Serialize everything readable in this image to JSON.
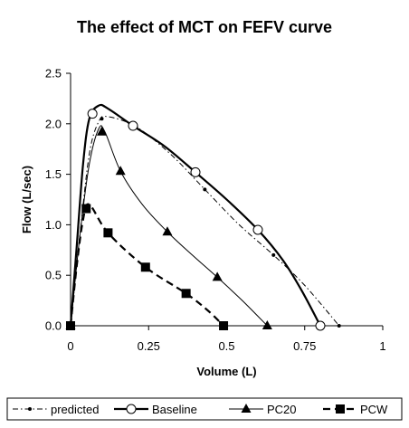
{
  "chart_data": {
    "type": "line",
    "title": "The effect of MCT on FEFV curve",
    "xlabel": "Volume (L)",
    "ylabel": "Flow (L/sec)",
    "xlim": [
      0,
      1
    ],
    "ylim": [
      0,
      2.5
    ],
    "x_ticks": [
      "0",
      "0.25",
      "0.5",
      "0.75",
      "1"
    ],
    "y_ticks": [
      "0.0",
      "0.5",
      "1.0",
      "1.5",
      "2.0",
      "2.5"
    ],
    "grid": false,
    "legend_position": "bottom",
    "series": [
      {
        "name": "predicted",
        "marker": "dot",
        "line": "dash-dot",
        "points": [
          [
            0,
            0
          ],
          [
            0.1,
            2.05
          ],
          [
            0.21,
            1.97
          ],
          [
            0.43,
            1.35
          ],
          [
            0.65,
            0.7
          ],
          [
            0.86,
            0
          ]
        ],
        "curve": [
          [
            0,
            0
          ],
          [
            0.03,
            0.9
          ],
          [
            0.06,
            1.7
          ],
          [
            0.09,
            2.02
          ],
          [
            0.12,
            2.07
          ],
          [
            0.21,
            1.97
          ],
          [
            0.32,
            1.7
          ],
          [
            0.43,
            1.35
          ],
          [
            0.54,
            1.0
          ],
          [
            0.65,
            0.7
          ],
          [
            0.75,
            0.4
          ],
          [
            0.86,
            0
          ]
        ]
      },
      {
        "name": "Baseline",
        "marker": "circle",
        "line": "solid-thick",
        "points": [
          [
            0.07,
            2.1
          ],
          [
            0.2,
            1.98
          ],
          [
            0.4,
            1.52
          ],
          [
            0.6,
            0.95
          ],
          [
            0.8,
            0
          ]
        ],
        "curve": [
          [
            0,
            0
          ],
          [
            0.02,
            0.8
          ],
          [
            0.04,
            1.6
          ],
          [
            0.06,
            2.05
          ],
          [
            0.09,
            2.18
          ],
          [
            0.12,
            2.15
          ],
          [
            0.2,
            1.98
          ],
          [
            0.3,
            1.78
          ],
          [
            0.4,
            1.52
          ],
          [
            0.5,
            1.25
          ],
          [
            0.6,
            0.95
          ],
          [
            0.68,
            0.65
          ],
          [
            0.74,
            0.35
          ],
          [
            0.8,
            0
          ]
        ]
      },
      {
        "name": "PC20",
        "marker": "triangle",
        "line": "solid-thin",
        "points": [
          [
            0,
            0
          ],
          [
            0.1,
            1.92
          ],
          [
            0.16,
            1.53
          ],
          [
            0.31,
            0.93
          ],
          [
            0.47,
            0.48
          ],
          [
            0.63,
            0
          ]
        ],
        "curve": [
          [
            0,
            0
          ],
          [
            0.03,
            0.9
          ],
          [
            0.06,
            1.6
          ],
          [
            0.09,
            1.95
          ],
          [
            0.11,
            1.92
          ],
          [
            0.16,
            1.53
          ],
          [
            0.23,
            1.2
          ],
          [
            0.31,
            0.93
          ],
          [
            0.39,
            0.7
          ],
          [
            0.47,
            0.48
          ],
          [
            0.55,
            0.25
          ],
          [
            0.63,
            0
          ]
        ]
      },
      {
        "name": "PCW",
        "marker": "square",
        "line": "dashed-thick",
        "points": [
          [
            0,
            0
          ],
          [
            0.05,
            1.16
          ],
          [
            0.12,
            0.92
          ],
          [
            0.24,
            0.58
          ],
          [
            0.37,
            0.32
          ],
          [
            0.49,
            0
          ]
        ],
        "curve": [
          [
            0,
            0
          ],
          [
            0.02,
            0.6
          ],
          [
            0.04,
            1.05
          ],
          [
            0.06,
            1.2
          ],
          [
            0.12,
            0.92
          ],
          [
            0.24,
            0.58
          ],
          [
            0.37,
            0.32
          ],
          [
            0.44,
            0.15
          ],
          [
            0.49,
            0
          ]
        ]
      }
    ]
  }
}
